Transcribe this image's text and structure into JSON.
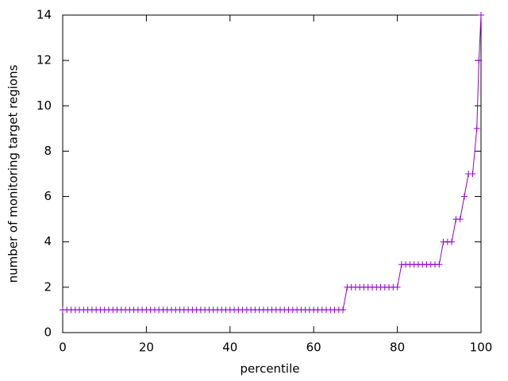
{
  "chart_data": {
    "type": "line",
    "xlabel": "percentile",
    "ylabel": "number of monitoring target regions",
    "x": [
      0,
      1,
      2,
      3,
      4,
      5,
      6,
      7,
      8,
      9,
      10,
      11,
      12,
      13,
      14,
      15,
      16,
      17,
      18,
      19,
      20,
      21,
      22,
      23,
      24,
      25,
      26,
      27,
      28,
      29,
      30,
      31,
      32,
      33,
      34,
      35,
      36,
      37,
      38,
      39,
      40,
      41,
      42,
      43,
      44,
      45,
      46,
      47,
      48,
      49,
      50,
      51,
      52,
      53,
      54,
      55,
      56,
      57,
      58,
      59,
      60,
      61,
      62,
      63,
      64,
      65,
      66,
      67,
      68,
      69,
      70,
      71,
      72,
      73,
      74,
      75,
      76,
      77,
      78,
      79,
      80,
      81,
      82,
      83,
      84,
      85,
      86,
      87,
      88,
      89,
      90,
      91,
      92,
      93,
      94,
      95,
      96,
      97,
      98,
      99,
      99.5,
      100
    ],
    "series": [
      {
        "color": "#9400d3",
        "values": [
          1,
          1,
          1,
          1,
          1,
          1,
          1,
          1,
          1,
          1,
          1,
          1,
          1,
          1,
          1,
          1,
          1,
          1,
          1,
          1,
          1,
          1,
          1,
          1,
          1,
          1,
          1,
          1,
          1,
          1,
          1,
          1,
          1,
          1,
          1,
          1,
          1,
          1,
          1,
          1,
          1,
          1,
          1,
          1,
          1,
          1,
          1,
          1,
          1,
          1,
          1,
          1,
          1,
          1,
          1,
          1,
          1,
          1,
          1,
          1,
          1,
          1,
          1,
          1,
          1,
          1,
          1,
          1,
          2,
          2,
          2,
          2,
          2,
          2,
          2,
          2,
          2,
          2,
          2,
          2,
          2,
          3,
          3,
          3,
          3,
          3,
          3,
          3,
          3,
          3,
          3,
          4,
          4,
          4,
          5,
          5,
          6,
          7,
          7,
          9,
          12,
          14
        ]
      }
    ],
    "xlim": [
      0,
      100
    ],
    "xticks": [
      0,
      20,
      40,
      60,
      80,
      100
    ],
    "ylim": [
      0,
      14
    ],
    "yticks": [
      0,
      2,
      4,
      6,
      8,
      10,
      12,
      14
    ]
  }
}
